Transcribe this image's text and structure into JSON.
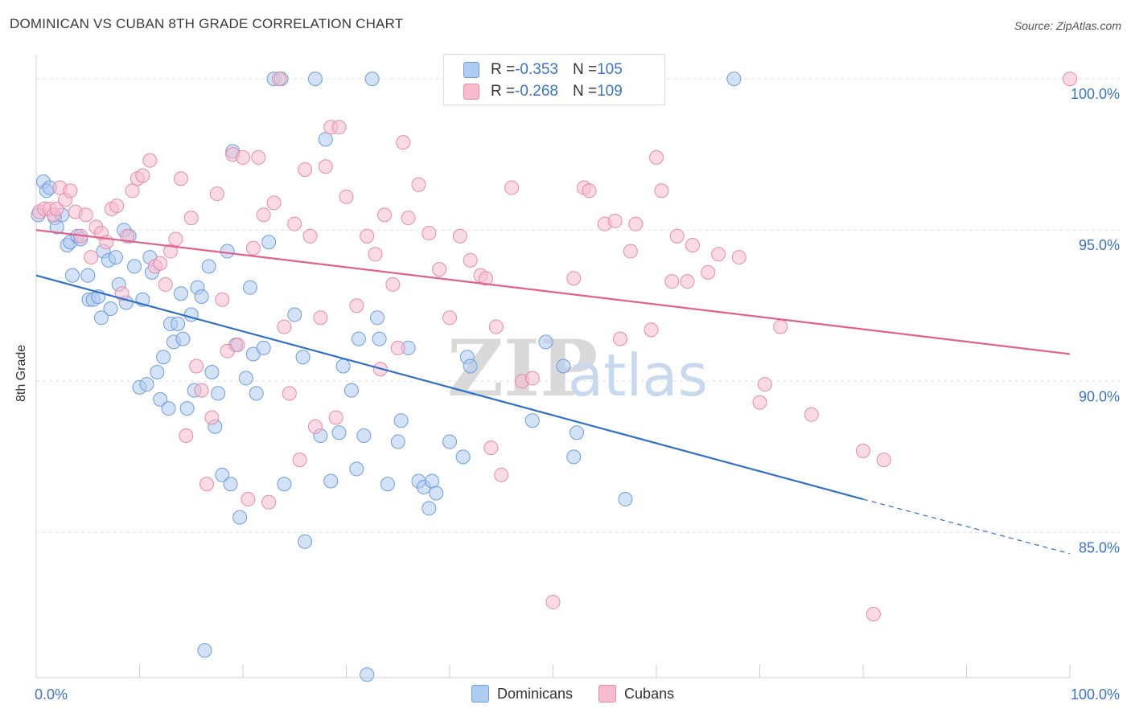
{
  "header": {
    "title": "DOMINICAN VS CUBAN 8TH GRADE CORRELATION CHART",
    "source": "Source: ZipAtlas.com"
  },
  "colors": {
    "blue_fill": "#aecbf0",
    "blue_stroke": "#6c9edb",
    "blue_line": "#2f6fcc",
    "pink_fill": "#f6bccd",
    "pink_stroke": "#e88aa8",
    "pink_line": "#e0628c",
    "tick_text": "#3a74c8",
    "grid": "#e2e2e2"
  },
  "stats_legend": {
    "rows": [
      {
        "r_label": "R = ",
        "r_value": "-0.353",
        "n_label": "N = ",
        "n_value": "105",
        "color": "blue"
      },
      {
        "r_label": "R = ",
        "r_value": "-0.268",
        "n_label": "N = ",
        "n_value": "109",
        "color": "pink"
      }
    ]
  },
  "chart_data": {
    "type": "scatter",
    "title": "DOMINICAN VS CUBAN 8TH GRADE CORRELATION CHART",
    "xlabel": "",
    "ylabel": "8th Grade",
    "xlim": [
      0,
      100
    ],
    "ylim": [
      80.2,
      100.8
    ],
    "x_tick_labels": [
      "0.0%",
      "100.0%"
    ],
    "y_ticks": [
      85,
      90,
      95,
      100
    ],
    "y_tick_labels": [
      "85.0%",
      "90.0%",
      "95.0%",
      "100.0%"
    ],
    "grid": true,
    "legend_position": "bottom-center",
    "watermark": "ZIPatlas",
    "series": [
      {
        "name": "Dominicans",
        "color": "blue",
        "r": -0.353,
        "n": 105,
        "trend": {
          "x0": 0,
          "y0": 93.5,
          "x1": 80,
          "y1": 86.1,
          "dash_to_x": 100,
          "dash_to_y": 84.3
        },
        "points": [
          [
            0.2,
            95.5
          ],
          [
            0.7,
            96.6
          ],
          [
            1,
            96.3
          ],
          [
            1.3,
            96.4
          ],
          [
            1.8,
            95.4
          ],
          [
            2,
            95.1
          ],
          [
            2.5,
            95.5
          ],
          [
            3,
            94.5
          ],
          [
            3.3,
            94.6
          ],
          [
            3.5,
            93.5
          ],
          [
            4,
            94.8
          ],
          [
            4.3,
            94.7
          ],
          [
            5,
            93.5
          ],
          [
            5.1,
            92.7
          ],
          [
            5.5,
            92.7
          ],
          [
            6,
            92.8
          ],
          [
            6.3,
            92.1
          ],
          [
            6.5,
            94.3
          ],
          [
            7,
            94.0
          ],
          [
            7.2,
            92.4
          ],
          [
            7.7,
            94.1
          ],
          [
            8,
            93.2
          ],
          [
            8.5,
            95.0
          ],
          [
            8.7,
            92.6
          ],
          [
            9,
            94.8
          ],
          [
            9.5,
            93.8
          ],
          [
            10,
            89.8
          ],
          [
            10.3,
            92.7
          ],
          [
            10.7,
            89.9
          ],
          [
            11,
            94.1
          ],
          [
            11.2,
            93.6
          ],
          [
            11.7,
            90.3
          ],
          [
            12,
            89.4
          ],
          [
            12.3,
            90.8
          ],
          [
            12.8,
            89.1
          ],
          [
            13,
            91.9
          ],
          [
            13.3,
            91.3
          ],
          [
            13.7,
            91.9
          ],
          [
            14,
            92.9
          ],
          [
            14.2,
            91.4
          ],
          [
            14.6,
            89.1
          ],
          [
            15,
            92.2
          ],
          [
            15.3,
            89.7
          ],
          [
            15.6,
            93.1
          ],
          [
            16,
            92.8
          ],
          [
            16.3,
            81.1
          ],
          [
            16.7,
            93.8
          ],
          [
            17,
            90.3
          ],
          [
            17.3,
            88.5
          ],
          [
            17.6,
            89.6
          ],
          [
            18,
            86.9
          ],
          [
            18.5,
            94.3
          ],
          [
            18.8,
            86.6
          ],
          [
            19,
            97.6
          ],
          [
            19.3,
            91.2
          ],
          [
            19.7,
            85.5
          ],
          [
            20.3,
            90.1
          ],
          [
            20.7,
            93.1
          ],
          [
            21,
            90.9
          ],
          [
            21.3,
            89.6
          ],
          [
            22,
            91.1
          ],
          [
            22.5,
            94.6
          ],
          [
            23,
            100.0
          ],
          [
            23.7,
            100.0
          ],
          [
            24,
            86.6
          ],
          [
            25,
            92.2
          ],
          [
            25.8,
            90.8
          ],
          [
            26,
            84.7
          ],
          [
            27,
            100.0
          ],
          [
            27.5,
            88.2
          ],
          [
            28,
            98.0
          ],
          [
            28.5,
            86.7
          ],
          [
            29.3,
            88.3
          ],
          [
            29.7,
            90.5
          ],
          [
            30.5,
            89.7
          ],
          [
            31,
            87.1
          ],
          [
            31.2,
            91.4
          ],
          [
            31.7,
            88.2
          ],
          [
            32,
            80.3
          ],
          [
            32.5,
            100.0
          ],
          [
            33,
            92.1
          ],
          [
            33.2,
            91.4
          ],
          [
            34,
            86.6
          ],
          [
            35,
            88.0
          ],
          [
            35.3,
            88.7
          ],
          [
            36,
            91.1
          ],
          [
            37,
            86.7
          ],
          [
            37.5,
            86.5
          ],
          [
            38,
            85.8
          ],
          [
            38.3,
            86.7
          ],
          [
            38.7,
            86.3
          ],
          [
            40,
            88.0
          ],
          [
            41.3,
            87.5
          ],
          [
            41.7,
            90.8
          ],
          [
            42,
            90.5
          ],
          [
            48,
            88.7
          ],
          [
            49.3,
            91.3
          ],
          [
            51,
            90.5
          ],
          [
            52,
            87.5
          ],
          [
            52.3,
            88.3
          ],
          [
            57,
            86.1
          ],
          [
            67.5,
            100.0
          ]
        ]
      },
      {
        "name": "Cubans",
        "color": "pink",
        "r": -0.268,
        "n": 109,
        "trend": {
          "x0": 0,
          "y0": 95.0,
          "x1": 100,
          "y1": 90.9
        },
        "points": [
          [
            0.3,
            95.6
          ],
          [
            0.8,
            95.7
          ],
          [
            1.3,
            95.7
          ],
          [
            1.7,
            95.5
          ],
          [
            2,
            95.7
          ],
          [
            2.3,
            96.4
          ],
          [
            2.8,
            96.0
          ],
          [
            3.3,
            96.3
          ],
          [
            3.8,
            95.6
          ],
          [
            4.3,
            94.8
          ],
          [
            4.8,
            95.5
          ],
          [
            5.3,
            94.1
          ],
          [
            5.8,
            95.1
          ],
          [
            6.3,
            94.9
          ],
          [
            6.8,
            94.6
          ],
          [
            7.3,
            95.7
          ],
          [
            7.8,
            95.8
          ],
          [
            8.3,
            92.9
          ],
          [
            8.8,
            94.8
          ],
          [
            9.3,
            96.3
          ],
          [
            9.8,
            96.7
          ],
          [
            10.3,
            96.8
          ],
          [
            11,
            97.3
          ],
          [
            11.5,
            93.8
          ],
          [
            12,
            93.9
          ],
          [
            12.5,
            93.2
          ],
          [
            13,
            94.3
          ],
          [
            13.5,
            94.7
          ],
          [
            14,
            96.7
          ],
          [
            14.5,
            88.2
          ],
          [
            15,
            95.4
          ],
          [
            15.5,
            90.5
          ],
          [
            16,
            89.7
          ],
          [
            16.5,
            86.6
          ],
          [
            17,
            88.8
          ],
          [
            17.5,
            96.2
          ],
          [
            18,
            92.7
          ],
          [
            18.5,
            91.0
          ],
          [
            19,
            97.5
          ],
          [
            19.5,
            91.2
          ],
          [
            20,
            97.4
          ],
          [
            20.5,
            86.1
          ],
          [
            21,
            94.4
          ],
          [
            21.5,
            97.4
          ],
          [
            22,
            95.5
          ],
          [
            22.5,
            86.0
          ],
          [
            23,
            95.9
          ],
          [
            23.5,
            100.0
          ],
          [
            24,
            91.8
          ],
          [
            24.5,
            89.6
          ],
          [
            25,
            95.2
          ],
          [
            25.5,
            87.4
          ],
          [
            26,
            97.0
          ],
          [
            26.5,
            94.8
          ],
          [
            27,
            88.5
          ],
          [
            27.5,
            92.1
          ],
          [
            28,
            97.1
          ],
          [
            28.5,
            98.4
          ],
          [
            29,
            88.8
          ],
          [
            29.3,
            98.4
          ],
          [
            30,
            96.1
          ],
          [
            31,
            92.5
          ],
          [
            32,
            94.8
          ],
          [
            32.8,
            94.2
          ],
          [
            33.3,
            90.4
          ],
          [
            33.7,
            95.5
          ],
          [
            34.5,
            93.2
          ],
          [
            35,
            91.1
          ],
          [
            35.5,
            97.9
          ],
          [
            36,
            95.4
          ],
          [
            37,
            96.5
          ],
          [
            38,
            94.9
          ],
          [
            39,
            93.7
          ],
          [
            40,
            92.1
          ],
          [
            41,
            94.8
          ],
          [
            42,
            94.0
          ],
          [
            43,
            93.5
          ],
          [
            43.5,
            93.4
          ],
          [
            44,
            87.8
          ],
          [
            44.5,
            91.8
          ],
          [
            45,
            86.9
          ],
          [
            46,
            96.4
          ],
          [
            47,
            90.0
          ],
          [
            48,
            90.1
          ],
          [
            50,
            82.7
          ],
          [
            52,
            93.4
          ],
          [
            53,
            96.4
          ],
          [
            53.5,
            96.3
          ],
          [
            55,
            95.2
          ],
          [
            56,
            95.3
          ],
          [
            56.5,
            91.4
          ],
          [
            57.5,
            94.3
          ],
          [
            58,
            95.2
          ],
          [
            59.5,
            91.7
          ],
          [
            60,
            97.4
          ],
          [
            60.5,
            96.3
          ],
          [
            61.5,
            93.3
          ],
          [
            62,
            94.8
          ],
          [
            63,
            93.3
          ],
          [
            63.5,
            94.5
          ],
          [
            65,
            93.6
          ],
          [
            66,
            94.2
          ],
          [
            68,
            94.1
          ],
          [
            70,
            89.3
          ],
          [
            70.5,
            89.9
          ],
          [
            72,
            91.8
          ],
          [
            75,
            88.9
          ],
          [
            80,
            87.7
          ],
          [
            81,
            82.3
          ],
          [
            82,
            87.4
          ],
          [
            100,
            100.0
          ]
        ]
      }
    ]
  },
  "bottom_legend": {
    "items": [
      {
        "label": "Dominicans",
        "color": "blue"
      },
      {
        "label": "Cubans",
        "color": "pink"
      }
    ]
  }
}
